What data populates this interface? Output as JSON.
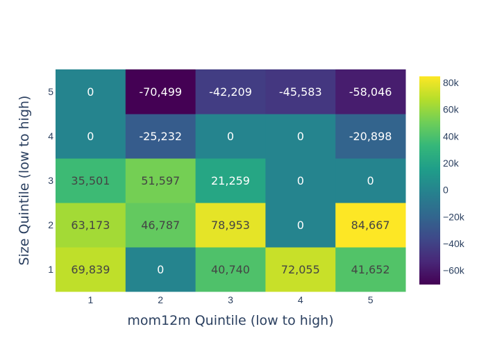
{
  "chart_data": {
    "type": "heatmap",
    "xlabel": "mom12m Quintile (low to high)",
    "ylabel": "Size Quintile (low to high)",
    "x": [
      "1",
      "2",
      "3",
      "4",
      "5"
    ],
    "y": [
      "1",
      "2",
      "3",
      "4",
      "5"
    ],
    "z": [
      [
        69839,
        0,
        40740,
        72055,
        41652
      ],
      [
        63173,
        46787,
        78953,
        0,
        84667
      ],
      [
        35501,
        51597,
        21259,
        0,
        0
      ],
      [
        0,
        -25232,
        0,
        0,
        -20898
      ],
      [
        0,
        -70499,
        -42209,
        -45583,
        -58046
      ]
    ],
    "text": [
      [
        "69,839",
        "0",
        "40,740",
        "72,055",
        "41,652"
      ],
      [
        "63,173",
        "46,787",
        "78,953",
        "0",
        "84,667"
      ],
      [
        "35,501",
        "51,597",
        "21,259",
        "0",
        "0"
      ],
      [
        "0",
        "-25,232",
        "0",
        "0",
        "-20,898"
      ],
      [
        "0",
        "-70,499",
        "-42,209",
        "-45,583",
        "-58,046"
      ]
    ],
    "zmin": -70499,
    "zmax": 84667,
    "colorscale": "viridis",
    "colorbar_ticks": [
      {
        "value": 80000,
        "label": "80k"
      },
      {
        "value": 60000,
        "label": "60k"
      },
      {
        "value": 40000,
        "label": "40k"
      },
      {
        "value": 20000,
        "label": "20k"
      },
      {
        "value": 0,
        "label": "0"
      },
      {
        "value": -20000,
        "label": "−20k"
      },
      {
        "value": -40000,
        "label": "−40k"
      },
      {
        "value": -60000,
        "label": "−60k"
      }
    ]
  }
}
